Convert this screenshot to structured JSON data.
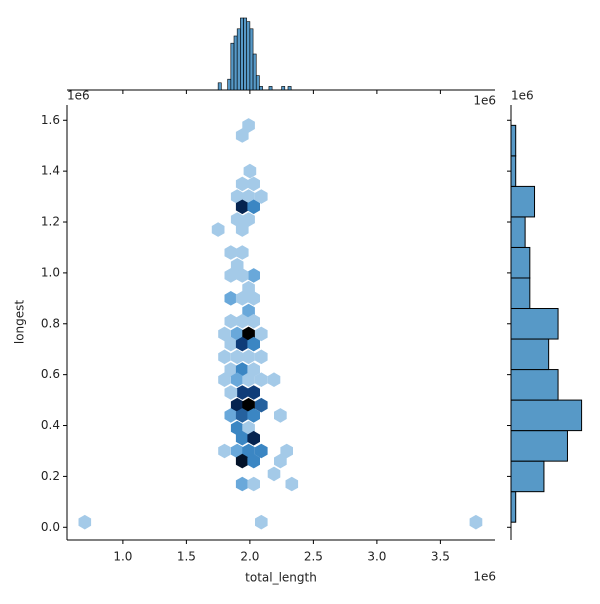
{
  "chart_data": [
    {
      "type": "hexbin",
      "xlabel": "total_length",
      "ylabel": "longest",
      "offset_text": "1e6",
      "color": "#1f77b4",
      "x": [
        0.7,
        2.09,
        3.78,
        1.99,
        1.94,
        2.0,
        1.94,
        2.03,
        1.9,
        2.09,
        1.99,
        1.94,
        2.03,
        1.9,
        1.99,
        1.75,
        1.94,
        1.85,
        1.94,
        1.9,
        1.85,
        2.03,
        1.94,
        1.99,
        1.85,
        2.03,
        1.94,
        1.99,
        1.85,
        1.94,
        2.03,
        1.8,
        1.9,
        1.99,
        2.09,
        1.85,
        1.94,
        2.03,
        1.8,
        1.9,
        1.99,
        2.09,
        1.85,
        1.94,
        2.03,
        1.8,
        1.9,
        1.99,
        2.09,
        2.19,
        1.94,
        2.03,
        1.85,
        1.9,
        1.99,
        2.09,
        1.85,
        1.94,
        2.03,
        2.24,
        1.9,
        1.99,
        1.94,
        2.03,
        1.9,
        1.8,
        1.99,
        2.09,
        2.29,
        1.94,
        2.03,
        2.24,
        2.19,
        1.94,
        2.03,
        2.33
      ],
      "y": [
        0.02,
        0.02,
        0.02,
        1.58,
        1.54,
        1.4,
        1.35,
        1.35,
        1.3,
        1.3,
        1.3,
        1.26,
        1.26,
        1.21,
        1.21,
        1.17,
        1.17,
        1.08,
        1.08,
        1.03,
        0.99,
        0.99,
        0.99,
        0.94,
        0.9,
        0.9,
        0.9,
        0.85,
        0.81,
        0.81,
        0.81,
        0.76,
        0.76,
        0.76,
        0.76,
        0.72,
        0.72,
        0.72,
        0.67,
        0.67,
        0.67,
        0.67,
        0.62,
        0.62,
        0.62,
        0.58,
        0.58,
        0.58,
        0.58,
        0.58,
        0.53,
        0.53,
        0.53,
        0.48,
        0.48,
        0.48,
        0.44,
        0.44,
        0.44,
        0.44,
        0.39,
        0.39,
        0.35,
        0.35,
        0.3,
        0.3,
        0.3,
        0.3,
        0.3,
        0.26,
        0.26,
        0.26,
        0.21,
        0.17,
        0.17,
        0.17
      ],
      "counts": [
        1,
        1,
        1,
        1,
        1,
        1,
        1,
        1,
        1,
        1,
        1,
        6,
        3,
        1,
        1,
        1,
        1,
        1,
        1,
        1,
        1,
        2,
        1,
        1,
        2,
        1,
        1,
        2,
        1,
        1,
        1,
        1,
        2,
        8,
        1,
        1,
        5,
        3,
        1,
        1,
        1,
        1,
        1,
        3,
        1,
        1,
        2,
        1,
        1,
        1,
        5,
        5,
        1,
        6,
        8,
        4,
        2,
        4,
        3,
        1,
        3,
        1,
        3,
        6,
        2,
        1,
        3,
        3,
        1,
        7,
        3,
        1,
        1,
        2,
        1,
        1
      ],
      "xlim": [
        0.56,
        3.93
      ],
      "ylim": [
        -0.05,
        1.66
      ],
      "xticks": [
        {
          "value": 1,
          "label": "1.0"
        },
        1.5,
        {
          "value": 2,
          "label": "2.0"
        },
        2.5,
        {
          "value": 3,
          "label": "3.0"
        },
        3.5
      ],
      "yticks": [
        {
          "value": 0,
          "label": "0.0"
        },
        0.2,
        0.4,
        0.6,
        0.8,
        {
          "value": 1,
          "label": "1.0"
        },
        1.2,
        1.4,
        1.6
      ]
    },
    {
      "type": "histogram",
      "orientation": "vertical",
      "color": "#1f77b4",
      "bins": [
        1.75,
        1.775,
        1.8,
        1.825,
        1.85,
        1.875,
        1.9,
        1.925,
        1.95,
        1.975,
        2.0,
        2.025,
        2.05,
        2.075,
        2.1,
        2.125,
        2.15,
        2.175,
        2.2,
        2.225,
        2.25,
        2.275,
        2.3,
        2.325,
        2.35
      ],
      "counts": [
        2,
        0,
        0,
        3,
        13,
        15,
        17,
        20,
        20,
        19,
        17,
        10,
        4,
        1,
        0,
        0,
        1,
        0,
        0,
        0,
        1,
        0,
        1,
        0
      ],
      "ylim": [
        0,
        20
      ]
    },
    {
      "type": "histogram",
      "orientation": "horizontal",
      "color": "#1f77b4",
      "bins": [
        0.02,
        0.14,
        0.26,
        0.38,
        0.5,
        0.62,
        0.74,
        0.86,
        0.98,
        1.1,
        1.22,
        1.34,
        1.46,
        1.58
      ],
      "counts": [
        1,
        7,
        12,
        15,
        10,
        8,
        10,
        4,
        4,
        3,
        5,
        1,
        1
      ],
      "xlim": [
        0,
        17
      ]
    }
  ]
}
